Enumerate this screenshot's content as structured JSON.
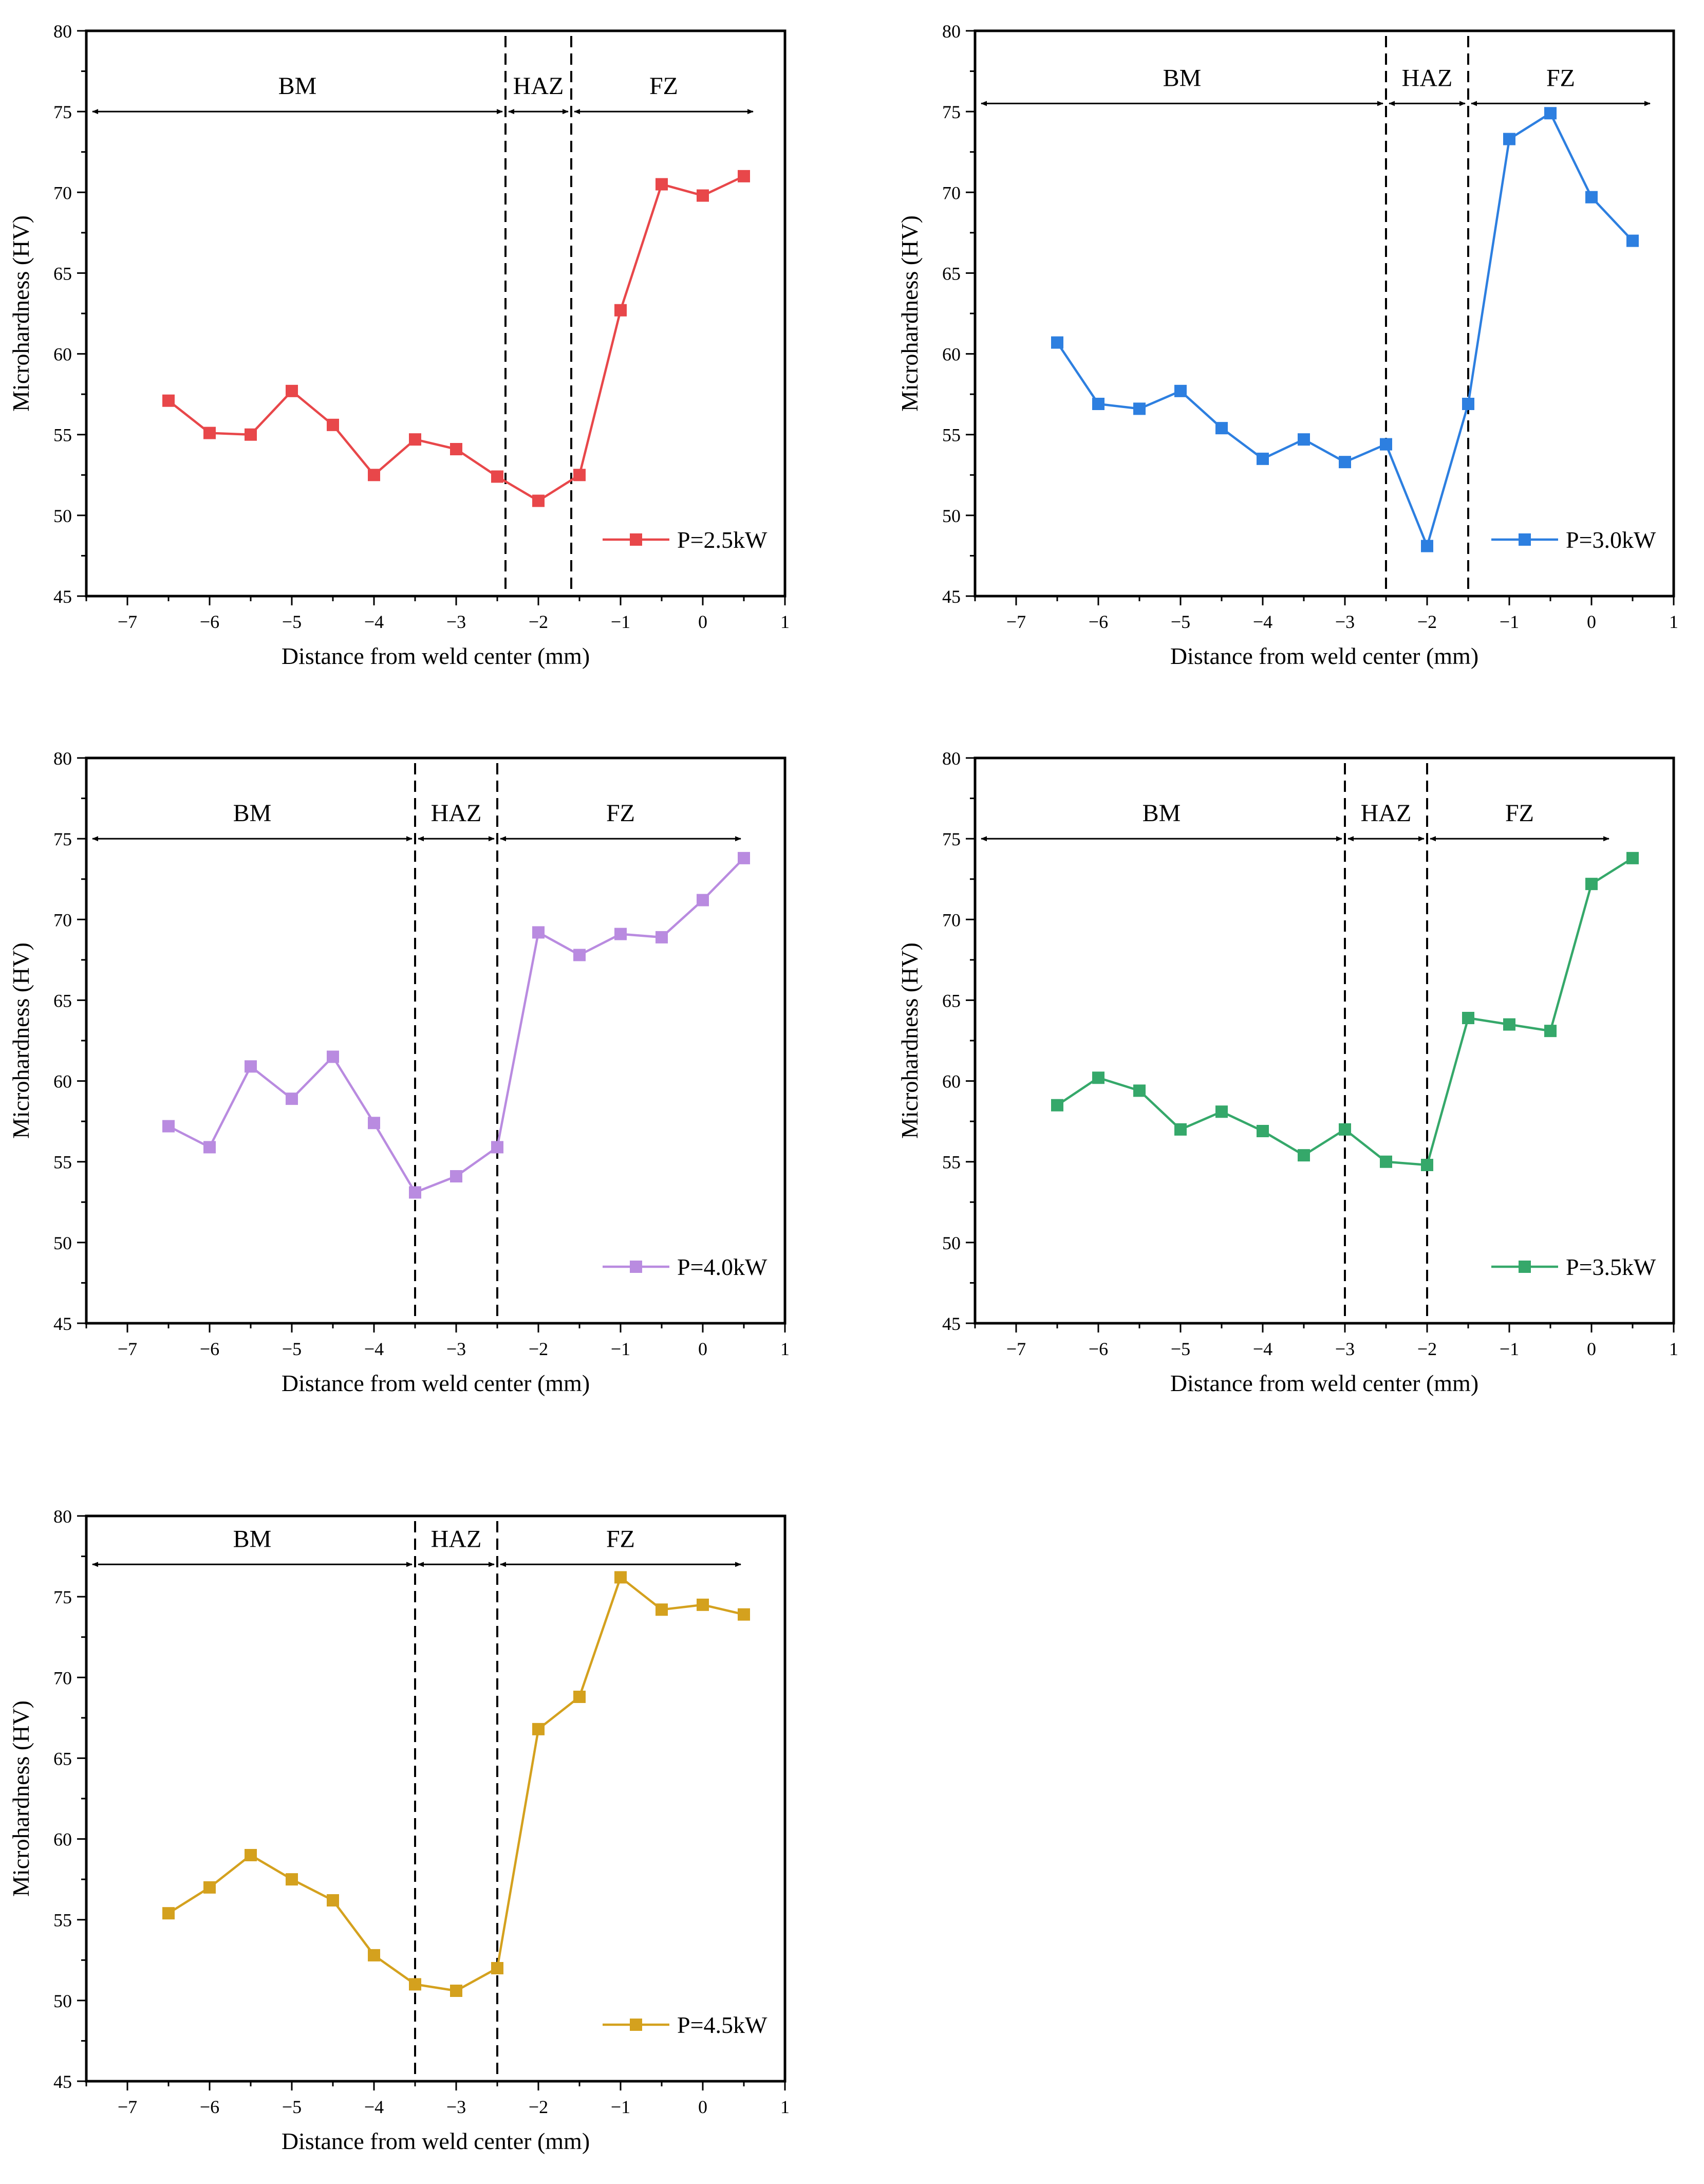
{
  "chart_data": [
    {
      "type": "line",
      "xlabel": "Distance from weld center (mm)",
      "ylabel": "Microhardness (HV)",
      "xlim": [
        -7.5,
        1.0
      ],
      "ylim": [
        45,
        80
      ],
      "xticks": [
        -7,
        -6,
        -5,
        -4,
        -3,
        -2,
        -1,
        0,
        1
      ],
      "yticks": [
        45,
        50,
        55,
        60,
        65,
        70,
        75,
        80
      ],
      "x_tick_labels": [
        "−7",
        "−6",
        "−5",
        "−4",
        "−3",
        "−2",
        "−1",
        "0",
        "1"
      ],
      "y_tick_labels": [
        "45",
        "50",
        "55",
        "60",
        "65",
        "70",
        "75",
        "80"
      ],
      "color": "#e8474a",
      "legend_placement": "bottom-right",
      "series": [
        {
          "name": "P=2.5kW",
          "x": [
            -6.5,
            -6,
            -5.5,
            -5,
            -4.5,
            -4,
            -3.5,
            -3,
            -2.5,
            -2,
            -1.5,
            -1,
            -0.5,
            0,
            0.5
          ],
          "y": [
            57.1,
            55.1,
            55.0,
            57.7,
            55.6,
            52.5,
            54.7,
            54.1,
            52.4,
            50.9,
            52.5,
            62.7,
            70.5,
            69.8,
            71.0
          ]
        }
      ],
      "boundaries": [
        -2.4,
        -1.6
      ],
      "regions": [
        {
          "label": "BM",
          "from": -7.5,
          "to": -2.4
        },
        {
          "label": "HAZ",
          "from": -2.4,
          "to": -1.6
        },
        {
          "label": "FZ",
          "from": -1.6,
          "to": 0.65
        }
      ],
      "arrow_y": 75
    },
    {
      "type": "line",
      "xlabel": "Distance from weld center (mm)",
      "ylabel": "Microhardness (HV)",
      "xlim": [
        -7.5,
        1.0
      ],
      "ylim": [
        45,
        80
      ],
      "xticks": [
        -7,
        -6,
        -5,
        -4,
        -3,
        -2,
        -1,
        0,
        1
      ],
      "yticks": [
        45,
        50,
        55,
        60,
        65,
        70,
        75,
        80
      ],
      "x_tick_labels": [
        "−7",
        "−6",
        "−5",
        "−4",
        "−3",
        "−2",
        "−1",
        "0",
        "1"
      ],
      "y_tick_labels": [
        "45",
        "50",
        "55",
        "60",
        "65",
        "70",
        "75",
        "80"
      ],
      "color": "#2d7fe0",
      "legend_placement": "bottom-right",
      "series": [
        {
          "name": "P=3.0kW",
          "x": [
            -6.5,
            -6,
            -5.5,
            -5,
            -4.5,
            -4,
            -3.5,
            -3,
            -2.5,
            -2,
            -1.5,
            -1,
            -0.5,
            0,
            0.5
          ],
          "y": [
            60.7,
            56.9,
            56.6,
            57.7,
            55.4,
            53.5,
            54.7,
            53.3,
            54.4,
            48.1,
            56.9,
            73.3,
            74.9,
            69.7,
            67.0
          ]
        }
      ],
      "boundaries": [
        -2.5,
        -1.5
      ],
      "regions": [
        {
          "label": "BM",
          "from": -7.5,
          "to": -2.5
        },
        {
          "label": "HAZ",
          "from": -2.5,
          "to": -1.5
        },
        {
          "label": "FZ",
          "from": -1.5,
          "to": 0.75
        }
      ],
      "arrow_y": 75.5
    },
    {
      "type": "line",
      "xlabel": "Distance from weld center (mm)",
      "ylabel": "Microhardness (HV)",
      "xlim": [
        -7.5,
        1.0
      ],
      "ylim": [
        45,
        80
      ],
      "xticks": [
        -7,
        -6,
        -5,
        -4,
        -3,
        -2,
        -1,
        0,
        1
      ],
      "yticks": [
        45,
        50,
        55,
        60,
        65,
        70,
        75,
        80
      ],
      "x_tick_labels": [
        "−7",
        "−6",
        "−5",
        "−4",
        "−3",
        "−2",
        "−1",
        "0",
        "1"
      ],
      "y_tick_labels": [
        "45",
        "50",
        "55",
        "60",
        "65",
        "70",
        "75",
        "80"
      ],
      "color": "#b98be0",
      "legend_placement": "bottom-right",
      "series": [
        {
          "name": "P=4.0kW",
          "x": [
            -6.5,
            -6,
            -5.5,
            -5,
            -4.5,
            -4,
            -3.5,
            -3,
            -2.5,
            -2,
            -1.5,
            -1,
            -0.5,
            0,
            0.5
          ],
          "y": [
            57.2,
            55.9,
            60.9,
            58.9,
            61.5,
            57.4,
            53.1,
            54.1,
            55.9,
            69.2,
            67.8,
            69.1,
            68.9,
            71.2,
            73.8
          ]
        }
      ],
      "boundaries": [
        -3.5,
        -2.5
      ],
      "regions": [
        {
          "label": "BM",
          "from": -7.5,
          "to": -3.5
        },
        {
          "label": "HAZ",
          "from": -3.5,
          "to": -2.5
        },
        {
          "label": "FZ",
          "from": -2.5,
          "to": 0.5
        }
      ],
      "arrow_y": 75
    },
    {
      "type": "line",
      "xlabel": "Distance from weld center (mm)",
      "ylabel": "Microhardness (HV)",
      "xlim": [
        -7.5,
        1.0
      ],
      "ylim": [
        45,
        80
      ],
      "xticks": [
        -7,
        -6,
        -5,
        -4,
        -3,
        -2,
        -1,
        0,
        1
      ],
      "yticks": [
        45,
        50,
        55,
        60,
        65,
        70,
        75,
        80
      ],
      "x_tick_labels": [
        "−7",
        "−6",
        "−5",
        "−4",
        "−3",
        "−2",
        "−1",
        "0",
        "1"
      ],
      "y_tick_labels": [
        "45",
        "50",
        "55",
        "60",
        "65",
        "70",
        "75",
        "80"
      ],
      "color": "#35a86a",
      "legend_placement": "bottom-right",
      "series": [
        {
          "name": "P=3.5kW",
          "x": [
            -6.5,
            -6,
            -5.5,
            -5,
            -4.5,
            -4,
            -3.5,
            -3,
            -2.5,
            -2,
            -1.5,
            -1,
            -0.5,
            0,
            0.5
          ],
          "y": [
            58.5,
            60.2,
            59.4,
            57.0,
            58.1,
            56.9,
            55.4,
            57.0,
            55.0,
            54.8,
            63.9,
            63.5,
            63.1,
            72.2,
            73.8
          ]
        }
      ],
      "boundaries": [
        -3.0,
        -2.0
      ],
      "regions": [
        {
          "label": "BM",
          "from": -7.5,
          "to": -3.0
        },
        {
          "label": "HAZ",
          "from": -3.0,
          "to": -2.0
        },
        {
          "label": "FZ",
          "from": -2.0,
          "to": 0.25
        }
      ],
      "arrow_y": 75
    },
    {
      "type": "line",
      "xlabel": "Distance from weld center (mm)",
      "ylabel": "Microhardness (HV)",
      "xlim": [
        -7.5,
        1.0
      ],
      "ylim": [
        45,
        80
      ],
      "xticks": [
        -7,
        -6,
        -5,
        -4,
        -3,
        -2,
        -1,
        0,
        1
      ],
      "yticks": [
        45,
        50,
        55,
        60,
        65,
        70,
        75,
        80
      ],
      "x_tick_labels": [
        "−7",
        "−6",
        "−5",
        "−4",
        "−3",
        "−2",
        "−1",
        "0",
        "1"
      ],
      "y_tick_labels": [
        "45",
        "50",
        "55",
        "60",
        "65",
        "70",
        "75",
        "80"
      ],
      "color": "#d4a11e",
      "legend_placement": "bottom-right",
      "series": [
        {
          "name": "P=4.5kW",
          "x": [
            -6.5,
            -6,
            -5.5,
            -5,
            -4.5,
            -4,
            -3.5,
            -3,
            -2.5,
            -2,
            -1.5,
            -1,
            -0.5,
            0,
            0.5
          ],
          "y": [
            55.4,
            57.0,
            59.0,
            57.5,
            56.2,
            52.8,
            51.0,
            50.6,
            52.0,
            66.8,
            68.8,
            76.2,
            74.2,
            74.5,
            73.9
          ]
        }
      ],
      "boundaries": [
        -3.5,
        -2.5
      ],
      "regions": [
        {
          "label": "BM",
          "from": -7.5,
          "to": -3.5
        },
        {
          "label": "HAZ",
          "from": -3.5,
          "to": -2.5
        },
        {
          "label": "FZ",
          "from": -2.5,
          "to": 0.5
        }
      ],
      "arrow_y": 77
    }
  ]
}
